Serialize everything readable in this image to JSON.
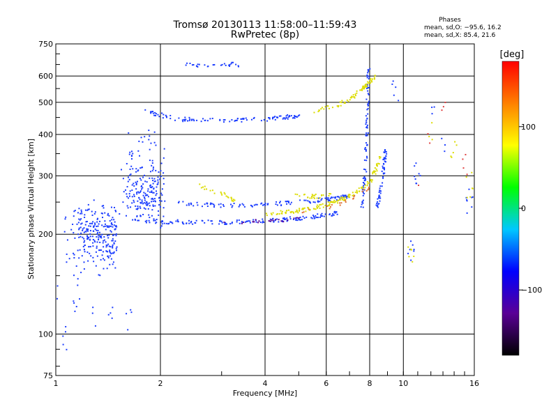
{
  "chart_data": {
    "type": "scatter",
    "title": "Tromsø 20130113 11:58:00–11:59:43",
    "subtitle": "RwPretec (8p)",
    "xlabel": "Frequency [MHz]",
    "ylabel": "Stationary phase Virtual Height [km]",
    "x_scale": "log",
    "y_scale": "log",
    "xlim": [
      1,
      16
    ],
    "ylim": [
      75,
      750
    ],
    "x_ticks": [
      1,
      2,
      4,
      6,
      8,
      10,
      16
    ],
    "y_ticks": [
      75,
      100,
      200,
      300,
      400,
      500,
      600,
      750
    ],
    "grid": true,
    "phase_stats": {
      "heading": "Phases",
      "line_o": "mean, sd,O: −95.6, 16.2",
      "line_x": "mean, sd,X:  85.4, 21.6"
    },
    "colorbar": {
      "label": "[deg]",
      "range": [
        -180,
        180
      ],
      "ticks": [
        -100,
        0,
        100
      ],
      "colors": [
        "#000000",
        "#5a0096",
        "#0000ff",
        "#00c8ff",
        "#00ff00",
        "#ffff00",
        "#ff8000",
        "#ff0000"
      ]
    },
    "series": [
      {
        "color": "#1a3cff",
        "kind": "band",
        "x": [
          1.2,
          1.5,
          1.05,
          1.5
        ],
        "y": [
          170,
          240,
          140,
          260
        ],
        "n": 260
      },
      {
        "color": "#1a3cff",
        "kind": "band",
        "x": [
          1.52,
          1.9,
          1.7,
          2.1
        ],
        "y": [
          200,
          420,
          220,
          280
        ],
        "n": 230
      },
      {
        "color": "#1a3cff",
        "kind": "line",
        "x": [
          2.0,
          3.0,
          4.2,
          5.5,
          6.5
        ],
        "y": [
          218,
          217,
          220,
          226,
          232
        ],
        "n": 140
      },
      {
        "color": "#1a3cff",
        "kind": "line",
        "x": [
          2.2,
          3.0,
          4.0,
          5.0,
          6.0,
          7.0
        ],
        "y": [
          248,
          244,
          246,
          250,
          255,
          260
        ],
        "n": 120
      },
      {
        "color": "#1a3cff",
        "kind": "line",
        "x": [
          1.8,
          2.2,
          3.0,
          4.0,
          5.0
        ],
        "y": [
          470,
          445,
          440,
          445,
          455
        ],
        "n": 110
      },
      {
        "color": "#1a3cff",
        "kind": "line",
        "x": [
          2.3,
          2.6,
          3.1,
          3.4
        ],
        "y": [
          650,
          648,
          650,
          650
        ],
        "n": 28
      },
      {
        "color": "#1a3cff",
        "kind": "line",
        "x": [
          7.6,
          7.75,
          7.85,
          7.9,
          7.95
        ],
        "y": [
          240,
          300,
          400,
          500,
          640
        ],
        "n": 90
      },
      {
        "color": "#1a3cff",
        "kind": "line",
        "x": [
          8.4,
          8.7,
          8.9
        ],
        "y": [
          240,
          290,
          360
        ],
        "n": 60
      },
      {
        "color": "#dcdc00",
        "kind": "line",
        "x": [
          4.0,
          5.0,
          6.0,
          7.0,
          8.0,
          8.6
        ],
        "y": [
          230,
          235,
          245,
          260,
          285,
          340
        ],
        "n": 140
      },
      {
        "color": "#dcdc00",
        "kind": "line",
        "x": [
          5.5,
          6.5,
          7.2,
          7.8,
          8.3
        ],
        "y": [
          470,
          490,
          520,
          560,
          600
        ],
        "n": 70
      },
      {
        "color": "#dcdc00",
        "kind": "line",
        "x": [
          2.6,
          3.0,
          3.3
        ],
        "y": [
          280,
          265,
          252
        ],
        "n": 25
      },
      {
        "color": "#dcdc00",
        "kind": "line",
        "x": [
          4.8,
          5.5,
          6.2
        ],
        "y": [
          265,
          260,
          262
        ],
        "n": 25
      },
      {
        "color": "#e07030",
        "kind": "line",
        "x": [
          5.0,
          6.0,
          7.0,
          8.0
        ],
        "y": [
          232,
          240,
          252,
          278
        ],
        "n": 22
      },
      {
        "color": "#5a0096",
        "kind": "line",
        "x": [
          3.0,
          4.0,
          5.0
        ],
        "y": [
          216,
          219,
          222
        ],
        "n": 20
      },
      {
        "color": "#1a3cff",
        "kind": "scatter",
        "x": [
          1.05,
          1.3,
          1.45,
          1.55,
          1.62,
          1.0,
          1.15
        ],
        "y": [
          97,
          110,
          115,
          120,
          112,
          135,
          128
        ],
        "n": 25
      },
      {
        "color": "#1a3cff",
        "kind": "scatter",
        "x": [
          10.5,
          11.0,
          12.0,
          13.0,
          15.5,
          9.5
        ],
        "y": [
          180,
          300,
          500,
          380,
          250,
          550
        ],
        "n": 35
      },
      {
        "color": "#dcdc00",
        "kind": "scatter",
        "x": [
          10.5,
          12.0,
          14.0,
          15.5
        ],
        "y": [
          170,
          400,
          350,
          280
        ],
        "n": 20
      },
      {
        "color": "#e04040",
        "kind": "scatter",
        "x": [
          11.0,
          12.0,
          13.0,
          15.0
        ],
        "y": [
          300,
          400,
          500,
          330
        ],
        "n": 10
      }
    ]
  }
}
